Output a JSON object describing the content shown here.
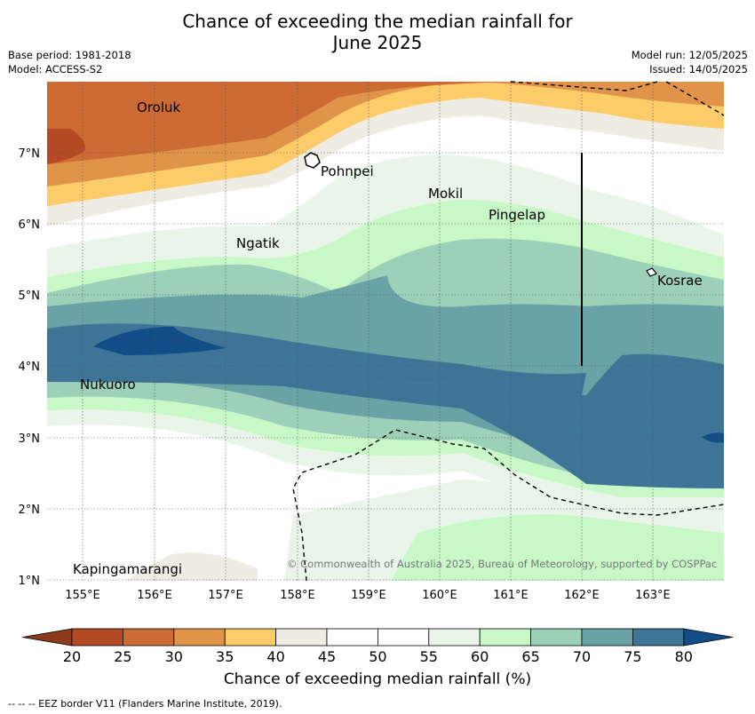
{
  "title": "Chance of exceeding the median rainfall for\nJune 2025",
  "meta_left": {
    "base_period": "Base period: 1981-2018",
    "model": "Model: ACCESS-S2"
  },
  "meta_right": {
    "model_run": "Model run: 12/05/2025",
    "issued": "Issued: 14/05/2025"
  },
  "map": {
    "x_ticks": [
      "155°E",
      "156°E",
      "157°E",
      "158°E",
      "159°E",
      "160°E",
      "161°E",
      "162°E",
      "163°E"
    ],
    "y_ticks": [
      "7°N",
      "6°N",
      "5°N",
      "4°N",
      "3°N",
      "2°N",
      "1°N"
    ],
    "places": [
      "Oroluk",
      "Pohnpei",
      "Mokil",
      "Pingelap",
      "Ngatik",
      "Kosrae",
      "Nukuoro",
      "Kapingamarangi"
    ],
    "copyright": "© Commonwealth of Australia 2025, Bureau of Meteorology, supported by COSPPac"
  },
  "colorbar": {
    "ticks": [
      "20",
      "25",
      "30",
      "35",
      "40",
      "45",
      "50",
      "55",
      "60",
      "65",
      "70",
      "75",
      "80"
    ],
    "colors": [
      "#8b3a1c",
      "#b34a24",
      "#cd6b35",
      "#e0944a",
      "#fdcc6a",
      "#efece3",
      "#ffffff",
      "#ffffff",
      "#e8f5e8",
      "#c8f8c8",
      "#9dd0b8",
      "#6aa3a6",
      "#3e7597",
      "#124d87"
    ],
    "title": "Chance of exceeding median rainfall (%)"
  },
  "eez_note": "--  --  -- EEZ border V11 (Flanders Marine Institute, 2019)."
}
